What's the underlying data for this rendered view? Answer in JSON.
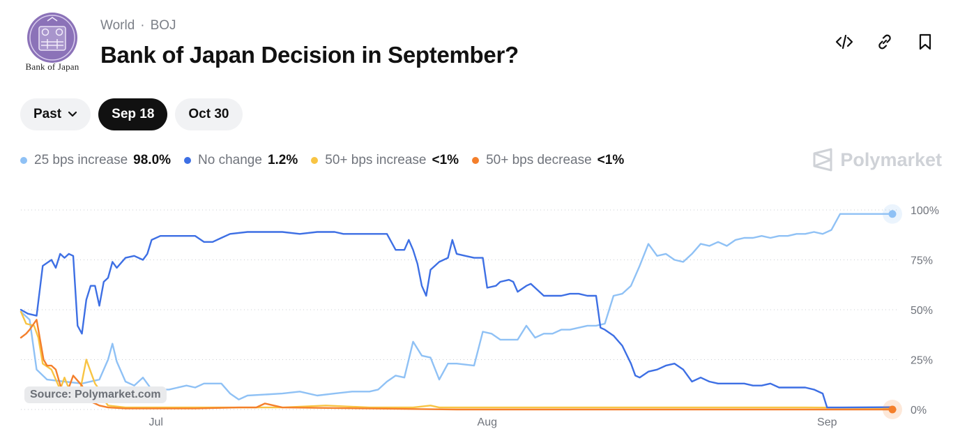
{
  "header": {
    "logo_icon": "boj-seal-icon",
    "logo_text": "Bank of Japan",
    "breadcrumb": [
      "World",
      "BOJ"
    ],
    "title": "Bank of Japan Decision in September?"
  },
  "actions": [
    {
      "name": "embed-icon"
    },
    {
      "name": "link-icon"
    },
    {
      "name": "bookmark-icon"
    }
  ],
  "filters": {
    "past_label": "Past",
    "dates": [
      "Sep 18",
      "Oct 30"
    ],
    "active": "Sep 18"
  },
  "brand": "Polymarket",
  "source": "Source: Polymarket.com",
  "chart_data": {
    "type": "line",
    "yticks": [
      "100%",
      "75%",
      "50%",
      "25%",
      "0%"
    ],
    "ylim": [
      0,
      100
    ],
    "xticks": [
      {
        "label": "Jul",
        "t": 0.155
      },
      {
        "label": "Aug",
        "t": 0.535
      },
      {
        "label": "Sep",
        "t": 0.925
      }
    ],
    "grid": true,
    "legend_position": "top",
    "series": [
      {
        "name": "25 bps increase",
        "value_label": "98.0%",
        "color": "#8fc1f5",
        "values": [
          [
            0,
            49
          ],
          [
            0.01,
            45
          ],
          [
            0.018,
            20
          ],
          [
            0.03,
            15
          ],
          [
            0.05,
            14
          ],
          [
            0.07,
            13
          ],
          [
            0.09,
            15
          ],
          [
            0.1,
            25
          ],
          [
            0.105,
            33
          ],
          [
            0.11,
            24
          ],
          [
            0.12,
            14
          ],
          [
            0.13,
            12
          ],
          [
            0.14,
            16
          ],
          [
            0.15,
            10
          ],
          [
            0.17,
            10
          ],
          [
            0.19,
            12
          ],
          [
            0.2,
            11
          ],
          [
            0.21,
            13
          ],
          [
            0.23,
            13
          ],
          [
            0.24,
            8
          ],
          [
            0.25,
            5
          ],
          [
            0.26,
            7
          ],
          [
            0.3,
            8
          ],
          [
            0.32,
            9
          ],
          [
            0.34,
            7
          ],
          [
            0.36,
            8
          ],
          [
            0.38,
            9
          ],
          [
            0.4,
            9
          ],
          [
            0.41,
            10
          ],
          [
            0.42,
            14
          ],
          [
            0.43,
            17
          ],
          [
            0.44,
            16
          ],
          [
            0.45,
            34
          ],
          [
            0.46,
            27
          ],
          [
            0.47,
            26
          ],
          [
            0.48,
            15
          ],
          [
            0.49,
            23
          ],
          [
            0.5,
            23
          ],
          [
            0.52,
            22
          ],
          [
            0.53,
            39
          ],
          [
            0.54,
            38
          ],
          [
            0.55,
            35
          ],
          [
            0.56,
            35
          ],
          [
            0.57,
            35
          ],
          [
            0.58,
            42
          ],
          [
            0.59,
            36
          ],
          [
            0.6,
            38
          ],
          [
            0.61,
            38
          ],
          [
            0.62,
            40
          ],
          [
            0.63,
            40
          ],
          [
            0.65,
            42
          ],
          [
            0.66,
            42
          ],
          [
            0.67,
            43
          ],
          [
            0.68,
            57
          ],
          [
            0.69,
            58
          ],
          [
            0.7,
            62
          ],
          [
            0.71,
            72
          ],
          [
            0.72,
            83
          ],
          [
            0.725,
            80
          ],
          [
            0.73,
            77
          ],
          [
            0.74,
            78
          ],
          [
            0.75,
            75
          ],
          [
            0.76,
            74
          ],
          [
            0.77,
            78
          ],
          [
            0.78,
            83
          ],
          [
            0.79,
            82
          ],
          [
            0.8,
            84
          ],
          [
            0.81,
            82
          ],
          [
            0.82,
            85
          ],
          [
            0.83,
            86
          ],
          [
            0.84,
            86
          ],
          [
            0.85,
            87
          ],
          [
            0.86,
            86
          ],
          [
            0.87,
            87
          ],
          [
            0.88,
            87
          ],
          [
            0.89,
            88
          ],
          [
            0.9,
            88
          ],
          [
            0.91,
            89
          ],
          [
            0.92,
            88
          ],
          [
            0.93,
            90
          ],
          [
            0.94,
            98
          ],
          [
            0.95,
            98
          ],
          [
            0.96,
            98
          ],
          [
            0.98,
            98
          ],
          [
            1,
            98
          ]
        ]
      },
      {
        "name": "No change",
        "value_label": "1.2%",
        "color": "#3d6fe4",
        "values": [
          [
            0,
            50
          ],
          [
            0.008,
            48
          ],
          [
            0.018,
            47
          ],
          [
            0.025,
            72
          ],
          [
            0.035,
            75
          ],
          [
            0.04,
            71
          ],
          [
            0.045,
            78
          ],
          [
            0.05,
            76
          ],
          [
            0.055,
            78
          ],
          [
            0.06,
            77
          ],
          [
            0.065,
            42
          ],
          [
            0.07,
            38
          ],
          [
            0.075,
            55
          ],
          [
            0.08,
            62
          ],
          [
            0.085,
            62
          ],
          [
            0.09,
            52
          ],
          [
            0.095,
            64
          ],
          [
            0.1,
            66
          ],
          [
            0.105,
            74
          ],
          [
            0.11,
            71
          ],
          [
            0.12,
            76
          ],
          [
            0.13,
            77
          ],
          [
            0.14,
            75
          ],
          [
            0.145,
            78
          ],
          [
            0.15,
            85
          ],
          [
            0.16,
            87
          ],
          [
            0.17,
            87
          ],
          [
            0.2,
            87
          ],
          [
            0.21,
            84
          ],
          [
            0.22,
            84
          ],
          [
            0.23,
            86
          ],
          [
            0.24,
            88
          ],
          [
            0.26,
            89
          ],
          [
            0.3,
            89
          ],
          [
            0.32,
            88
          ],
          [
            0.34,
            89
          ],
          [
            0.36,
            89
          ],
          [
            0.37,
            88
          ],
          [
            0.4,
            88
          ],
          [
            0.42,
            88
          ],
          [
            0.43,
            80
          ],
          [
            0.44,
            80
          ],
          [
            0.445,
            85
          ],
          [
            0.45,
            80
          ],
          [
            0.455,
            73
          ],
          [
            0.46,
            62
          ],
          [
            0.465,
            57
          ],
          [
            0.47,
            70
          ],
          [
            0.48,
            74
          ],
          [
            0.49,
            76
          ],
          [
            0.495,
            85
          ],
          [
            0.5,
            78
          ],
          [
            0.51,
            77
          ],
          [
            0.52,
            76
          ],
          [
            0.53,
            76
          ],
          [
            0.535,
            61
          ],
          [
            0.545,
            62
          ],
          [
            0.55,
            64
          ],
          [
            0.56,
            65
          ],
          [
            0.565,
            64
          ],
          [
            0.57,
            59
          ],
          [
            0.58,
            62
          ],
          [
            0.585,
            63
          ],
          [
            0.59,
            61
          ],
          [
            0.6,
            57
          ],
          [
            0.61,
            57
          ],
          [
            0.62,
            57
          ],
          [
            0.63,
            58
          ],
          [
            0.64,
            58
          ],
          [
            0.65,
            57
          ],
          [
            0.66,
            57
          ],
          [
            0.665,
            41
          ],
          [
            0.67,
            40
          ],
          [
            0.68,
            37
          ],
          [
            0.69,
            32
          ],
          [
            0.7,
            23
          ],
          [
            0.705,
            17
          ],
          [
            0.71,
            16
          ],
          [
            0.72,
            19
          ],
          [
            0.73,
            20
          ],
          [
            0.74,
            22
          ],
          [
            0.75,
            23
          ],
          [
            0.76,
            20
          ],
          [
            0.77,
            14
          ],
          [
            0.78,
            16
          ],
          [
            0.79,
            14
          ],
          [
            0.8,
            13
          ],
          [
            0.83,
            13
          ],
          [
            0.84,
            12
          ],
          [
            0.85,
            12
          ],
          [
            0.86,
            13
          ],
          [
            0.87,
            11
          ],
          [
            0.88,
            11
          ],
          [
            0.9,
            11
          ],
          [
            0.91,
            10
          ],
          [
            0.92,
            8
          ],
          [
            0.925,
            1
          ],
          [
            0.94,
            1
          ],
          [
            1,
            1.2
          ]
        ]
      },
      {
        "name": "50+ bps increase",
        "value_label": "<1%",
        "color": "#f8c443",
        "values": [
          [
            0,
            49
          ],
          [
            0.006,
            43
          ],
          [
            0.015,
            42
          ],
          [
            0.02,
            36
          ],
          [
            0.025,
            23
          ],
          [
            0.035,
            20
          ],
          [
            0.045,
            10
          ],
          [
            0.05,
            16
          ],
          [
            0.06,
            5
          ],
          [
            0.065,
            4
          ],
          [
            0.07,
            14
          ],
          [
            0.075,
            25
          ],
          [
            0.08,
            19
          ],
          [
            0.085,
            13
          ],
          [
            0.09,
            10
          ],
          [
            0.095,
            5
          ],
          [
            0.1,
            2
          ],
          [
            0.12,
            1
          ],
          [
            0.2,
            1
          ],
          [
            0.3,
            1
          ],
          [
            0.35,
            2
          ],
          [
            0.4,
            1
          ],
          [
            0.45,
            1
          ],
          [
            0.47,
            2
          ],
          [
            0.48,
            1
          ],
          [
            0.55,
            1
          ],
          [
            0.6,
            1
          ],
          [
            0.7,
            1
          ],
          [
            0.8,
            1
          ],
          [
            0.9,
            1
          ],
          [
            1,
            0.8
          ]
        ]
      },
      {
        "name": "50+ bps decrease",
        "value_label": "<1%",
        "color": "#f47f2b",
        "values": [
          [
            0,
            36
          ],
          [
            0.006,
            38
          ],
          [
            0.01,
            40
          ],
          [
            0.018,
            45
          ],
          [
            0.022,
            35
          ],
          [
            0.026,
            25
          ],
          [
            0.03,
            22
          ],
          [
            0.035,
            22
          ],
          [
            0.04,
            20
          ],
          [
            0.05,
            5
          ],
          [
            0.06,
            17
          ],
          [
            0.07,
            12
          ],
          [
            0.08,
            4
          ],
          [
            0.085,
            3
          ],
          [
            0.09,
            2
          ],
          [
            0.1,
            1
          ],
          [
            0.12,
            0.5
          ],
          [
            0.2,
            0.5
          ],
          [
            0.25,
            1
          ],
          [
            0.27,
            1
          ],
          [
            0.28,
            3
          ],
          [
            0.3,
            1
          ],
          [
            0.4,
            0.5
          ],
          [
            0.5,
            0
          ],
          [
            0.7,
            0
          ],
          [
            0.8,
            0
          ],
          [
            0.9,
            0
          ],
          [
            1,
            0
          ]
        ]
      }
    ]
  }
}
